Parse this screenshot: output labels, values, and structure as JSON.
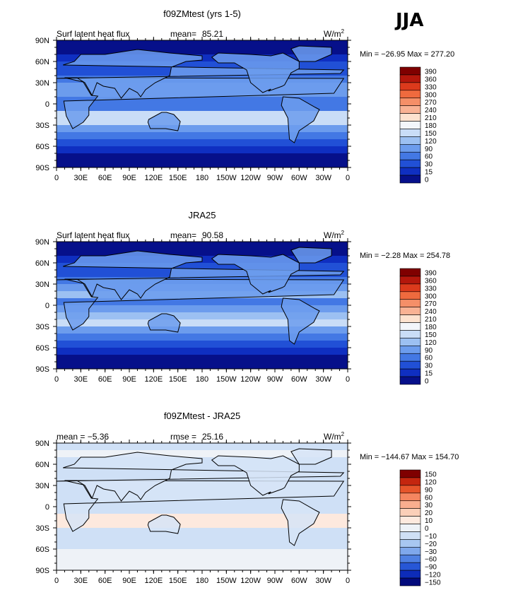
{
  "season": "JJA",
  "panels": [
    {
      "id": "panel-1",
      "title": "f09ZMtest (yrs 1-5)",
      "subtitle_left": "Surf latent heat flux",
      "mean_label": "mean=",
      "mean_value": "85.21",
      "units_base": "W/m",
      "units_exp": "2",
      "minmax": "Min = −26.95 Max = 277.20",
      "colorbar_labels": [
        "390",
        "360",
        "330",
        "300",
        "270",
        "240",
        "210",
        "180",
        "150",
        "120",
        "90",
        "60",
        "30",
        "15",
        "0"
      ]
    },
    {
      "id": "panel-2",
      "title": "JRA25",
      "subtitle_left": "Surf latent heat flux",
      "mean_label": "mean=",
      "mean_value": "90.58",
      "units_base": "W/m",
      "units_exp": "2",
      "minmax": "Min = −2.28 Max = 254.78",
      "colorbar_labels": [
        "390",
        "360",
        "330",
        "300",
        "270",
        "240",
        "210",
        "180",
        "150",
        "120",
        "90",
        "60",
        "30",
        "15",
        "0"
      ]
    },
    {
      "id": "panel-3",
      "title": "f09ZMtest - JRA25",
      "subtitle_left": "mean =   −5.36",
      "mean_label": "rmse =",
      "mean_value": "25.16",
      "units_base": "W/m",
      "units_exp": "2",
      "minmax": "Min = −144.67 Max = 154.70",
      "colorbar_labels": [
        "150",
        "120",
        "90",
        "60",
        "30",
        "20",
        "10",
        "0",
        "−10",
        "−20",
        "−30",
        "−60",
        "−90",
        "−120",
        "−150"
      ]
    }
  ],
  "lat_ticks": [
    "90N",
    "60N",
    "30N",
    "0",
    "30S",
    "60S",
    "90S"
  ],
  "lon_ticks": [
    "0",
    "30E",
    "60E",
    "90E",
    "120E",
    "150E",
    "180",
    "150W",
    "120W",
    "90W",
    "60W",
    "30W",
    "0"
  ],
  "colors": {
    "seq": [
      "#7f0000",
      "#b4170c",
      "#dc3a1c",
      "#ef6a3e",
      "#f58f68",
      "#f9b294",
      "#fde2cf",
      "#f3f6fb",
      "#c9ddf7",
      "#9cc0f2",
      "#6c9ced",
      "#4378e4",
      "#2150d6",
      "#0f2fc1",
      "#06108a"
    ],
    "div": [
      "#7f0000",
      "#c4260f",
      "#e6552b",
      "#f58660",
      "#f9ae8f",
      "#fbcfb8",
      "#fde9de",
      "#eef2f7",
      "#cfe0f6",
      "#a8c7f1",
      "#7fa8ec",
      "#4f80e2",
      "#2757d6",
      "#0d2cb9",
      "#020a7c"
    ]
  },
  "chart_data": [
    {
      "type": "heatmap",
      "title": "f09ZMtest (yrs 1-5)",
      "variable": "Surf latent heat flux",
      "units": "W/m2",
      "mean": 85.21,
      "min": -26.95,
      "max": 277.2,
      "levels": [
        0,
        15,
        30,
        60,
        90,
        120,
        150,
        180,
        210,
        240,
        270,
        300,
        330,
        360,
        390
      ],
      "xlim": [
        0,
        360
      ],
      "ylim": [
        -90,
        90
      ],
      "mean_by_latitude": {
        "lat": [
          -85,
          -75,
          -65,
          -55,
          -45,
          -35,
          -25,
          -15,
          -5,
          5,
          15,
          25,
          35,
          45,
          55,
          65,
          75,
          85
        ],
        "value": [
          0,
          8,
          25,
          40,
          60,
          100,
          160,
          150,
          80,
          60,
          110,
          90,
          70,
          50,
          35,
          20,
          8,
          2
        ]
      }
    },
    {
      "type": "heatmap",
      "title": "JRA25",
      "variable": "Surf latent heat flux",
      "units": "W/m2",
      "mean": 90.58,
      "min": -2.28,
      "max": 254.78,
      "levels": [
        0,
        15,
        30,
        60,
        90,
        120,
        150,
        180,
        210,
        240,
        270,
        300,
        330,
        360,
        390
      ],
      "xlim": [
        0,
        360
      ],
      "ylim": [
        -90,
        90
      ],
      "mean_by_latitude": {
        "lat": [
          -85,
          -75,
          -65,
          -55,
          -45,
          -35,
          -25,
          -15,
          -5,
          5,
          15,
          25,
          35,
          45,
          55,
          65,
          75,
          85
        ],
        "value": [
          0,
          6,
          22,
          45,
          70,
          110,
          150,
          140,
          90,
          70,
          120,
          100,
          75,
          55,
          38,
          22,
          8,
          3
        ]
      }
    },
    {
      "type": "heatmap",
      "title": "f09ZMtest - JRA25",
      "variable": "Surf latent heat flux",
      "units": "W/m2",
      "mean": -5.36,
      "rmse": 25.16,
      "min": -144.67,
      "max": 154.7,
      "levels": [
        -150,
        -120,
        -90,
        -60,
        -30,
        -20,
        -10,
        0,
        10,
        20,
        30,
        60,
        90,
        120,
        150
      ],
      "xlim": [
        0,
        360
      ],
      "ylim": [
        -90,
        90
      ],
      "mean_by_latitude": {
        "lat": [
          -85,
          -75,
          -65,
          -55,
          -45,
          -35,
          -25,
          -15,
          -5,
          5,
          15,
          25,
          35,
          45,
          55,
          65,
          75,
          85
        ],
        "value": [
          0,
          2,
          3,
          -5,
          -10,
          -10,
          10,
          10,
          -10,
          -10,
          -10,
          -10,
          -5,
          -5,
          -3,
          -2,
          0,
          -1
        ]
      }
    }
  ]
}
